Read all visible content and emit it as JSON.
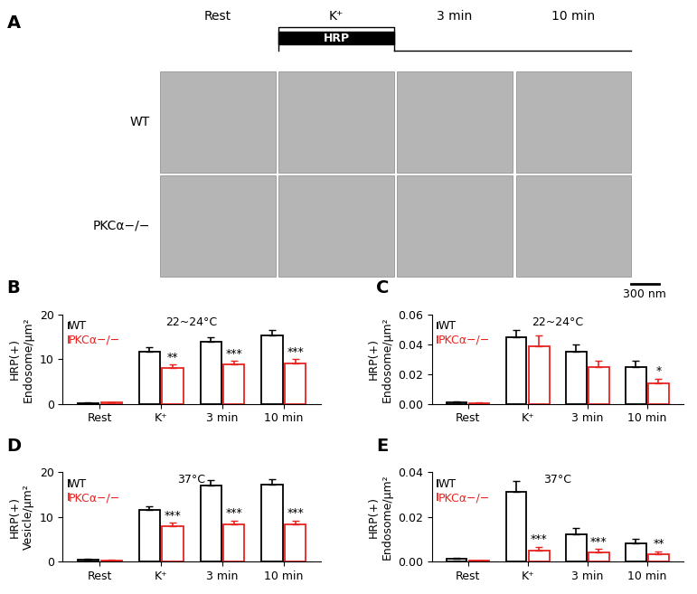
{
  "panel_A": {
    "label": "A",
    "column_labels": [
      "Rest",
      "K⁺",
      "3 min",
      "10 min"
    ],
    "row_labels": [
      "WT",
      "PKCα−/−"
    ],
    "stimulus_bar": "HRP",
    "scale_bar": "300 nm"
  },
  "chart_data": [
    {
      "type": "bar",
      "label": "B",
      "title": "22~24°C",
      "y_label": "HRP(+)\nEndosome/μm²",
      "categories": [
        "Rest",
        "K⁺",
        "3 min",
        "10 min"
      ],
      "ylim": [
        0,
        20
      ],
      "yticks": [
        0,
        10,
        20
      ],
      "legend": "upper left",
      "series": [
        {
          "name": "WT",
          "color": "#000000",
          "values": [
            0.2,
            11.8,
            14.0,
            15.4
          ],
          "errors": [
            0.1,
            0.9,
            0.9,
            1.2
          ]
        },
        {
          "name": "PKCα−/−",
          "color": "#e8231f",
          "values": [
            0.3,
            8.0,
            8.8,
            9.0
          ],
          "errors": [
            0.1,
            0.9,
            0.9,
            1.0
          ],
          "significance": [
            null,
            "**",
            "***",
            "***"
          ]
        }
      ]
    },
    {
      "type": "bar",
      "label": "C",
      "title": "22~24°C",
      "y_label": "HRP(+)\nEndosome/μm²",
      "categories": [
        "Rest",
        "K⁺",
        "3 min",
        "10 min"
      ],
      "ylim": [
        0,
        0.06
      ],
      "yticks": [
        {
          "value": 0,
          "label": "0.00"
        },
        0.02,
        0.04,
        0.06
      ],
      "legend": "upper left",
      "series": [
        {
          "name": "WT",
          "color": "#000000",
          "values": [
            0.001,
            0.045,
            0.035,
            0.025
          ],
          "errors": [
            0.0005,
            0.005,
            0.005,
            0.004
          ]
        },
        {
          "name": "PKCα−/−",
          "color": "#e8231f",
          "values": [
            0.0005,
            0.039,
            0.025,
            0.014
          ],
          "errors": [
            0.0003,
            0.007,
            0.004,
            0.003
          ],
          "significance": [
            null,
            null,
            null,
            "*"
          ]
        }
      ]
    },
    {
      "type": "bar",
      "label": "D",
      "title": "37°C",
      "y_label": "HRP(+)\nVesicle/μm²",
      "categories": [
        "Rest",
        "K⁺",
        "3 min",
        "10 min"
      ],
      "ylim": [
        0,
        20
      ],
      "yticks": [
        0,
        10,
        20
      ],
      "legend": "upper left",
      "series": [
        {
          "name": "WT",
          "color": "#000000",
          "values": [
            0.3,
            11.5,
            17.0,
            17.3
          ],
          "errors": [
            0.2,
            0.8,
            1.3,
            1.1
          ]
        },
        {
          "name": "PKCα−/−",
          "color": "#e8231f",
          "values": [
            0.2,
            7.8,
            8.2,
            8.2
          ],
          "errors": [
            0.1,
            0.9,
            1.0,
            1.0
          ],
          "significance": [
            null,
            "***",
            "***",
            "***"
          ]
        }
      ]
    },
    {
      "type": "bar",
      "label": "E",
      "title": "37°C",
      "y_label": "HRP(+)\nEndosome/μm²",
      "categories": [
        "Rest",
        "K⁺",
        "3 min",
        "10 min"
      ],
      "ylim": [
        0,
        0.04
      ],
      "yticks": [
        {
          "value": 0,
          "label": "0.00"
        },
        0.02,
        0.04
      ],
      "legend": "upper left",
      "series": [
        {
          "name": "WT",
          "color": "#000000",
          "values": [
            0.001,
            0.031,
            0.012,
            0.008
          ],
          "errors": [
            0.0005,
            0.005,
            0.003,
            0.002
          ]
        },
        {
          "name": "PKCα−/−",
          "color": "#e8231f",
          "values": [
            0.0003,
            0.005,
            0.004,
            0.003
          ],
          "errors": [
            0.0002,
            0.0015,
            0.0015,
            0.0015
          ],
          "significance": [
            null,
            "***",
            "***",
            "**"
          ]
        }
      ]
    }
  ]
}
